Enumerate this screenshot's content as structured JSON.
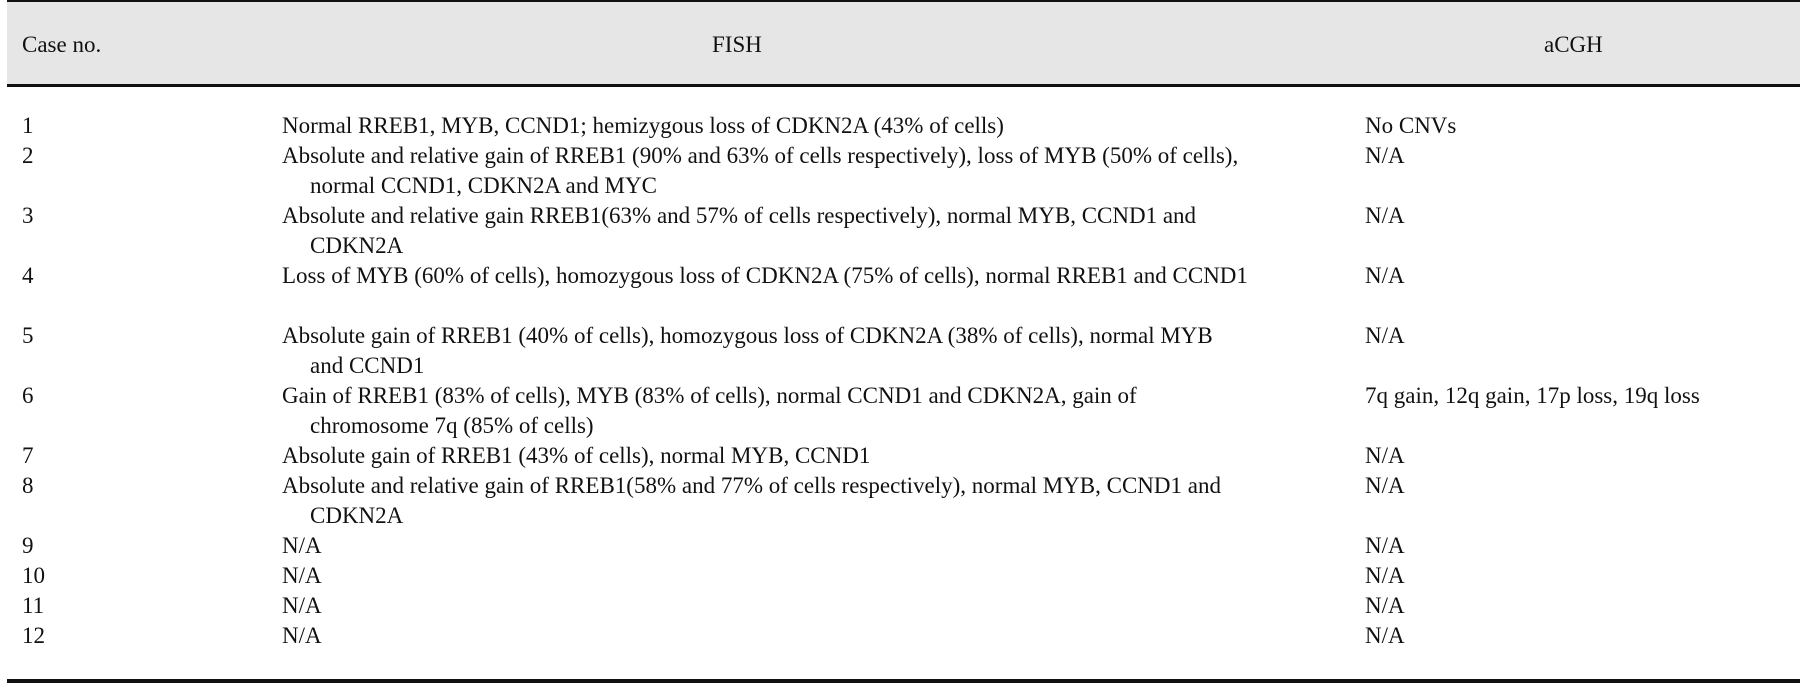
{
  "table": {
    "headers": {
      "case": "Case no.",
      "fish": "FISH",
      "acgh": "aCGH"
    },
    "rows": [
      {
        "case": "1",
        "fish": "Normal RREB1, MYB, CCND1; hemizygous loss of CDKN2A (43% of cells)",
        "acgh": "No CNVs"
      },
      {
        "case": "2",
        "fish": "Absolute and relative gain of RREB1 (90% and 63% of cells respectively), loss of MYB (50% of cells), normal CCND1, CDKN2A and MYC",
        "acgh": "N/A"
      },
      {
        "case": "3",
        "fish": "Absolute and relative gain RREB1(63% and 57% of cells respectively), normal MYB, CCND1 and CDKN2A",
        "acgh": "N/A"
      },
      {
        "case": "4",
        "fish": "Loss of MYB (60% of cells), homozygous loss of CDKN2A (75% of cells), normal RREB1 and CCND1",
        "acgh": "N/A"
      },
      {
        "case": "5",
        "fish": "Absolute gain of RREB1 (40% of cells), homozygous loss of CDKN2A (38% of cells), normal MYB and CCND1",
        "acgh": "N/A"
      },
      {
        "case": "6",
        "fish": "Gain of RREB1 (83% of cells), MYB (83% of cells), normal CCND1 and CDKN2A, gain of chromosome 7q (85% of cells)",
        "acgh": "7q gain, 12q gain, 17p loss, 19q loss"
      },
      {
        "case": "7",
        "fish": "Absolute gain of RREB1 (43% of cells), normal MYB, CCND1",
        "acgh": "N/A"
      },
      {
        "case": "8",
        "fish": "Absolute and relative gain of RREB1(58% and 77% of cells respectively), normal MYB, CCND1 and CDKN2A",
        "acgh": "N/A"
      },
      {
        "case": "9",
        "fish": "N/A",
        "acgh": "N/A"
      },
      {
        "case": "10",
        "fish": "N/A",
        "acgh": "N/A"
      },
      {
        "case": "11",
        "fish": "N/A",
        "acgh": "N/A"
      },
      {
        "case": "12",
        "fish": "N/A",
        "acgh": "N/A"
      }
    ]
  }
}
